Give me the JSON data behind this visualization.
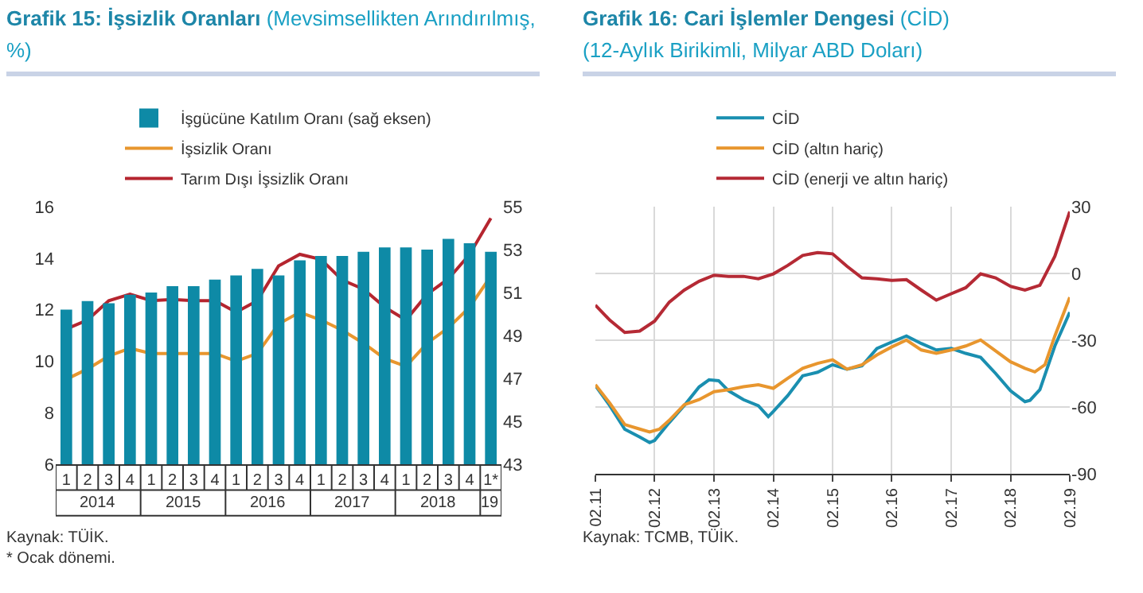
{
  "chart_data": [
    {
      "type": "line",
      "title": "Grafik 15: İşsizlik Oranları",
      "subtitle": "(Mevsimsellikten Arındırılmış, %)",
      "categories": [
        "1",
        "2",
        "3",
        "4",
        "1",
        "2",
        "3",
        "4",
        "1",
        "2",
        "3",
        "4",
        "1",
        "2",
        "3",
        "4",
        "1",
        "2",
        "3",
        "4",
        "1*"
      ],
      "series": [
        {
          "name": "İşgücüne Katılım Oranı (sağ eksen)",
          "type": "bar",
          "axis": "y2",
          "color": "#0e8aa6",
          "values": [
            50.2,
            50.6,
            50.5,
            50.9,
            51.0,
            51.3,
            51.3,
            51.6,
            51.8,
            52.1,
            51.8,
            52.5,
            52.7,
            52.7,
            52.9,
            53.1,
            53.1,
            53.0,
            53.5,
            53.3,
            52.9
          ]
        },
        {
          "name": "İşsizlik Oranı",
          "color": "#e8962e",
          "values": [
            9.3,
            9.7,
            10.2,
            10.5,
            10.3,
            10.3,
            10.3,
            10.3,
            10.0,
            10.3,
            11.45,
            11.9,
            11.6,
            11.2,
            10.7,
            10.1,
            9.8,
            10.7,
            11.3,
            12.1,
            13.3
          ]
        },
        {
          "name": "Tarım Dışı İşsizlik Oranı",
          "color": "#b5252f",
          "values": [
            11.25,
            11.6,
            12.35,
            12.6,
            12.35,
            12.4,
            12.35,
            12.35,
            11.9,
            12.35,
            13.7,
            14.15,
            13.95,
            13.15,
            12.8,
            12.1,
            11.6,
            12.6,
            13.2,
            14.15,
            15.55
          ]
        }
      ],
      "ylim": [
        6,
        16
      ],
      "yticks": [
        6,
        8,
        10,
        12,
        14,
        16
      ],
      "y2lim": [
        43,
        55
      ],
      "y2ticks": [
        43,
        45,
        47,
        49,
        51,
        53,
        55
      ],
      "legend": "top",
      "grid": false,
      "annotations": [
        "2014",
        "2015",
        "2016",
        "2017",
        "2018",
        "19",
        "Kaynak: TÜİK.",
        "* Ocak dönemi."
      ]
    },
    {
      "type": "line",
      "title": "Grafik 16: Cari İşlemler Dengesi",
      "subtitle": "(CİD)\n(12-Aylık Birikimli, Milyar ABD Doları)",
      "series": [
        {
          "name": "CİD",
          "color": "#1a8fb0",
          "x": [
            "2011-02",
            "2011-05",
            "2011-08",
            "2011-11",
            "2012-01",
            "2012-02",
            "2012-05",
            "2012-08",
            "2012-11",
            "2013-01",
            "2013-03",
            "2013-05",
            "2013-08",
            "2013-11",
            "2014-01",
            "2014-02",
            "2014-05",
            "2014-08",
            "2014-11",
            "2015-02",
            "2015-05",
            "2015-08",
            "2015-11",
            "2016-02",
            "2016-05",
            "2016-08",
            "2016-11",
            "2017-02",
            "2017-05",
            "2017-08",
            "2017-11",
            "2018-02",
            "2018-05",
            "2018-06",
            "2018-08",
            "2018-11",
            "2019-02"
          ],
          "values": [
            -50.4,
            -59.4,
            -70,
            -73.5,
            -76,
            -75,
            -67,
            -59.4,
            -51,
            -47.8,
            -48.2,
            -52.7,
            -56.7,
            -59.4,
            -64.3,
            -62,
            -54.9,
            -46,
            -44.4,
            -41,
            -43,
            -41.5,
            -33.7,
            -30.8,
            -28.1,
            -31.5,
            -34.4,
            -33.7,
            -35.9,
            -37.7,
            -44.9,
            -52.7,
            -57.6,
            -57,
            -52.2,
            -32.6,
            -17.4
          ]
        },
        {
          "name": "CİD (altın hariç)",
          "color": "#e8962e",
          "x": [
            "2011-02",
            "2011-05",
            "2011-08",
            "2011-11",
            "2012-01",
            "2012-03",
            "2012-05",
            "2012-08",
            "2012-11",
            "2013-02",
            "2013-05",
            "2013-08",
            "2013-11",
            "2014-02",
            "2014-05",
            "2014-08",
            "2014-11",
            "2015-02",
            "2015-05",
            "2015-08",
            "2015-11",
            "2016-02",
            "2016-05",
            "2016-08",
            "2016-11",
            "2017-02",
            "2017-05",
            "2017-08",
            "2017-11",
            "2018-02",
            "2018-05",
            "2018-07",
            "2018-09",
            "2018-11",
            "2019-02"
          ],
          "values": [
            -50,
            -58.3,
            -67.9,
            -69.9,
            -71.2,
            -70,
            -66,
            -59,
            -56.7,
            -53.1,
            -52.2,
            -50.9,
            -50,
            -51.6,
            -47.1,
            -42.6,
            -40.4,
            -38.8,
            -43,
            -41,
            -36.6,
            -33,
            -29.9,
            -34.4,
            -35.9,
            -34.4,
            -32.6,
            -29.9,
            -34.8,
            -39.7,
            -42.6,
            -44.2,
            -41,
            -28.1,
            -10.7
          ]
        },
        {
          "name": "CİD (enerji ve altın hariç)",
          "color": "#b52a35",
          "x": [
            "2011-02",
            "2011-05",
            "2011-08",
            "2011-11",
            "2012-02",
            "2012-05",
            "2012-08",
            "2012-11",
            "2013-02",
            "2013-05",
            "2013-08",
            "2013-11",
            "2014-02",
            "2014-05",
            "2014-08",
            "2014-11",
            "2015-02",
            "2015-05",
            "2015-08",
            "2015-11",
            "2016-02",
            "2016-05",
            "2016-08",
            "2016-11",
            "2017-02",
            "2017-05",
            "2017-08",
            "2017-11",
            "2018-02",
            "2018-05",
            "2018-08",
            "2018-11",
            "2019-02"
          ],
          "values": [
            -14.2,
            -21,
            -26.5,
            -25.9,
            -21.4,
            -12.9,
            -7.5,
            -3.5,
            -0.8,
            -1.3,
            -1.3,
            -2.4,
            -0.2,
            3.6,
            8.1,
            9.4,
            8.8,
            3.2,
            -2,
            -2.4,
            -3.1,
            -2.8,
            -7.5,
            -12,
            -9.1,
            -6.4,
            -0.2,
            -2,
            -5.8,
            -7.5,
            -5.3,
            7.7,
            27.8
          ]
        }
      ],
      "xlim": [
        "2011-02",
        "2019-02"
      ],
      "xticks": [
        {
          "value": "2011-02",
          "label": "02.11"
        },
        {
          "value": "2012-02",
          "label": "02.12"
        },
        {
          "value": "2013-02",
          "label": "02.13"
        },
        {
          "value": "2014-02",
          "label": "02.14"
        },
        {
          "value": "2015-02",
          "label": "02.15"
        },
        {
          "value": "2016-02",
          "label": "02.16"
        },
        {
          "value": "2017-02",
          "label": "02.17"
        },
        {
          "value": "2018-02",
          "label": "02.18"
        },
        {
          "value": "2019-02",
          "label": "02.19"
        }
      ],
      "ylim": [
        -90,
        30
      ],
      "yticks": [
        -90,
        -60,
        -30,
        0,
        30
      ],
      "legend": "top",
      "grid": true,
      "annotations": [
        "Kaynak: TCMB, TÜİK."
      ]
    }
  ]
}
